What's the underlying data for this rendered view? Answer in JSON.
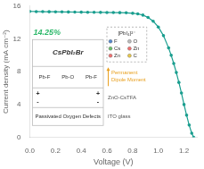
{
  "chart_data": {
    "type": "line",
    "xlabel": "Voltage (V)",
    "ylabel": "Current density (mA cm⁻²)",
    "xlim": [
      0.0,
      1.3
    ],
    "ylim": [
      0,
      16
    ],
    "xticks": [
      {
        "value": 0.0,
        "label": "0.0"
      },
      0.2,
      0.4,
      0.6,
      0.8,
      {
        "value": 1.0,
        "label": "1.0"
      },
      1.2
    ],
    "yticks": [
      0,
      4,
      8,
      12,
      16
    ],
    "grid": false,
    "x": [
      0.0,
      0.05,
      0.1,
      0.15,
      0.2,
      0.25,
      0.3,
      0.35,
      0.4,
      0.45,
      0.5,
      0.55,
      0.6,
      0.65,
      0.7,
      0.75,
      0.8,
      0.84,
      0.88,
      0.92,
      0.96,
      1.0,
      1.04,
      1.08,
      1.1,
      1.12,
      1.14,
      1.16,
      1.18,
      1.2,
      1.22,
      1.24,
      1.26,
      1.275
    ],
    "values": [
      15.35,
      15.33,
      15.32,
      15.31,
      15.3,
      15.29,
      15.28,
      15.27,
      15.26,
      15.25,
      15.24,
      15.23,
      15.22,
      15.21,
      15.2,
      15.18,
      15.12,
      15.05,
      14.9,
      14.62,
      14.15,
      13.45,
      12.4,
      10.9,
      10.0,
      9.0,
      7.9,
      6.7,
      5.4,
      4.0,
      2.7,
      1.5,
      0.5,
      0.0
    ],
    "color": "#1a9e8f",
    "marker": "o",
    "line_style": "solid",
    "annotations": [
      {
        "text": "14.25%",
        "color": "#2db86a"
      },
      {
        "text": "CsPbI₂Br"
      },
      {
        "text": "Pb-F"
      },
      {
        "text": "Pb-O"
      },
      {
        "text": "Pb-F"
      },
      {
        "text": "+"
      },
      {
        "text": "-"
      },
      {
        "text": "+"
      },
      {
        "text": "-"
      },
      {
        "text": "Passivated Oxygen Defects"
      },
      {
        "text": "Permanent\nDipole Moment",
        "color": "#e8a020"
      },
      {
        "text": "[PbI₄]²⁻"
      },
      {
        "text": "F",
        "marker": "o",
        "color": "#5588cc"
      },
      {
        "text": "O",
        "marker": "o",
        "color": "#bbbbbb"
      },
      {
        "text": "Cs",
        "marker": "o",
        "color": "#6abf6a"
      },
      {
        "text": "Zn",
        "marker": "o",
        "color": "#f07070"
      },
      {
        "text": "Zn",
        "marker": "o",
        "color": "#f07070"
      },
      {
        "text": "C",
        "marker": "o",
        "color": "#e8c84a"
      },
      {
        "text": "ZnO-CsTFA",
        "color": "#555555"
      },
      {
        "text": "ITO glass",
        "color": "#555555"
      }
    ]
  }
}
